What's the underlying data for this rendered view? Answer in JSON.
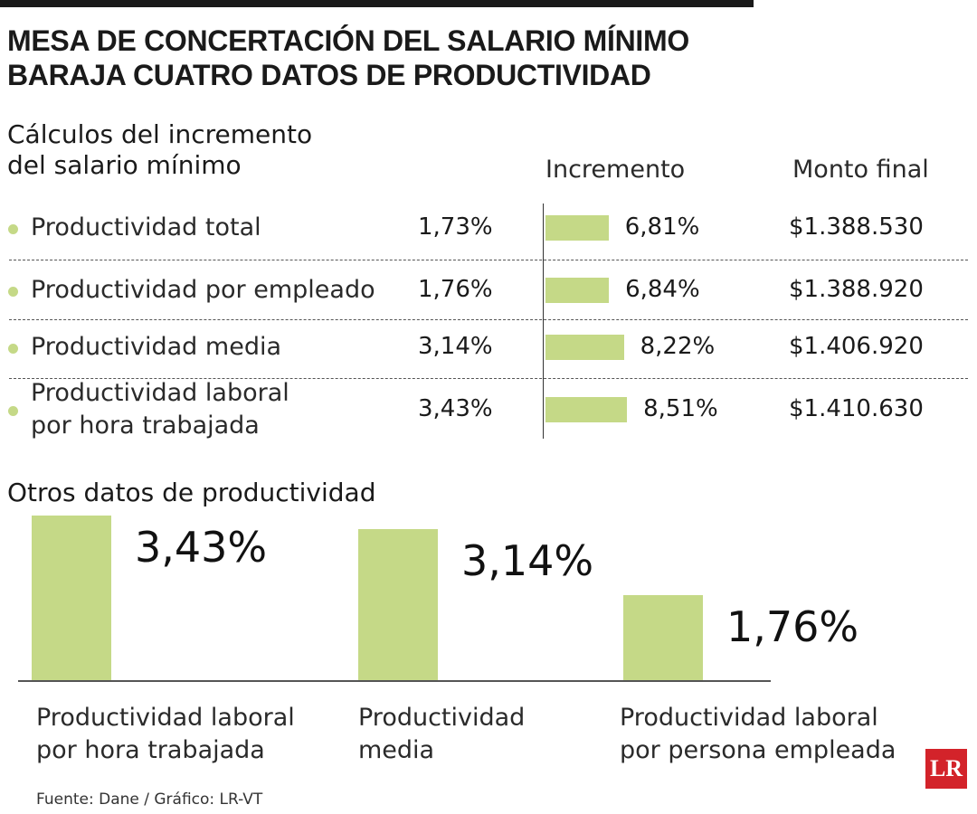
{
  "header": {
    "title": "MESA DE CONCERTACIÓN DEL SALARIO MÍNIMO BARAJA CUATRO DATOS DE PRODUCTIVIDAD"
  },
  "chart_data": [
    {
      "type": "table-hbar",
      "title": "Cálculos del incremento del salario mínimo",
      "categories": [
        "Productividad total",
        "Productividad por empleado",
        "Productividad media",
        "Productividad laboral por hora trabajada"
      ],
      "productividad": {
        "values": [
          1.73,
          1.76,
          3.14,
          3.43
        ],
        "value_labels": [
          "1,73%",
          "1,76%",
          "3,14%",
          "3,43%"
        ]
      },
      "series": [
        {
          "name": "Incremento",
          "color": "#c5d987",
          "values": [
            6.81,
            6.84,
            8.22,
            8.51
          ],
          "value_labels": [
            "6,81%",
            "6,84%",
            "8,22%",
            "8,51%"
          ]
        }
      ],
      "monto_final": {
        "name": "Monto final",
        "values": [
          1388530,
          1388920,
          1406920,
          1410630
        ],
        "value_labels": [
          "$1.388.530",
          "$1.388.920",
          "$1.406.920",
          "$1.410.630"
        ]
      },
      "xlim": [
        1,
        9
      ],
      "bullet_color": "#c5d987"
    },
    {
      "type": "bar",
      "title": "Otros datos de productividad",
      "categories": [
        "Productividad laboral por hora trabajada",
        "Productividad media",
        "Productividad laboral por persona empleada"
      ],
      "values": [
        3.43,
        3.14,
        1.76
      ],
      "value_labels": [
        "3,43%",
        "3,14%",
        "1,76%"
      ],
      "color": "#c5d987",
      "ylim": [
        0,
        3.5
      ]
    }
  ],
  "footer": {
    "source": "Fuente: Dane / Gráfico: LR-VT",
    "logo": "LR"
  }
}
